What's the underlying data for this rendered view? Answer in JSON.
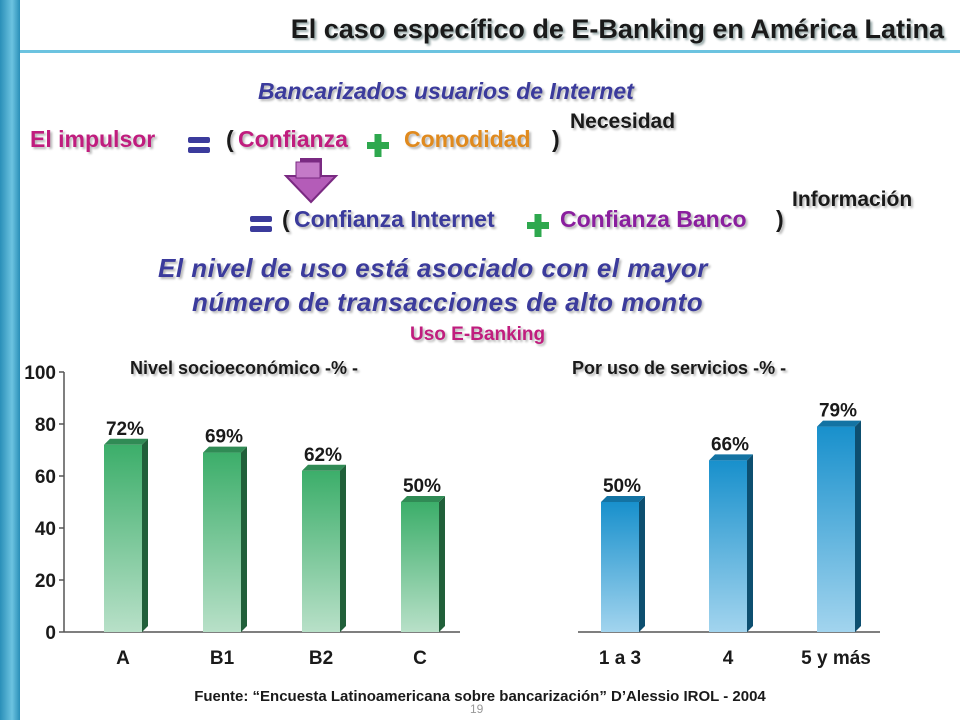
{
  "title": "El caso específico de E-Banking en América Latina",
  "subtitle": "Bancarizados usuarios de Internet",
  "equation1": {
    "label": "El impulsor",
    "open": "(",
    "term_a": "Confianza",
    "term_b": "Comodidad",
    "close": ")",
    "super": "Necesidad"
  },
  "equation2": {
    "open": "(",
    "term_a": "Confianza Internet",
    "term_b": "Confianza Banco",
    "close": ")",
    "super": "Información"
  },
  "statement": {
    "line1": "El nivel de uso está asociado con el mayor",
    "line2": "número de transacciones de alto monto"
  },
  "section_label": "Uso E-Banking",
  "source": "Fuente: “Encuesta Latinoamericana sobre bancarización” D’Alessio IROL - 2004",
  "page_number": "19",
  "colors": {
    "green_bar": "#3cae6a",
    "green_bar_light": "#b8e0c8",
    "blue_bar": "#1890cc",
    "blue_bar_light": "#a2d4ee",
    "accent_magenta": "#c01d7e",
    "accent_navy": "#3b3b9c"
  },
  "chart_data": [
    {
      "type": "bar",
      "title": "Nivel socioeconómico -% -",
      "categories": [
        "A",
        "B1",
        "B2",
        "C"
      ],
      "values": [
        72,
        69,
        62,
        50
      ],
      "data_labels": [
        "72%",
        "69%",
        "62%",
        "50%"
      ],
      "ylim": [
        0,
        100
      ],
      "yticks": [
        0,
        20,
        40,
        60,
        80,
        100
      ],
      "xlabel": "",
      "ylabel": "",
      "grid": false
    },
    {
      "type": "bar",
      "title": "Por uso de servicios -% -",
      "categories": [
        "1 a 3",
        "4",
        "5 y más"
      ],
      "values": [
        50,
        66,
        79
      ],
      "data_labels": [
        "50%",
        "66%",
        "79%"
      ],
      "ylim": [
        0,
        100
      ],
      "xlabel": "",
      "ylabel": "",
      "grid": false
    }
  ]
}
